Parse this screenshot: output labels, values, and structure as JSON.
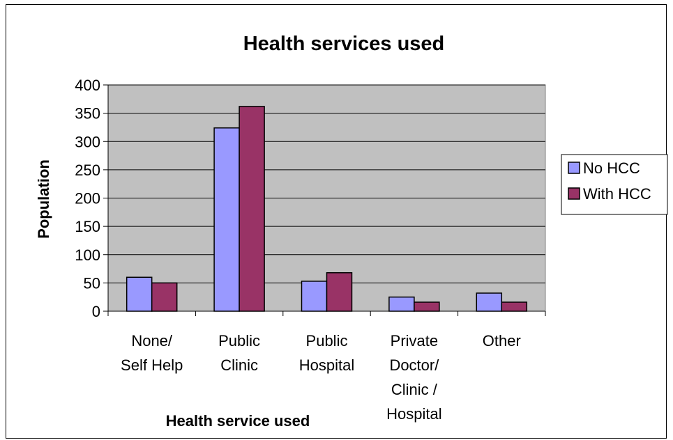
{
  "chart_data": {
    "type": "bar",
    "title": "Health services used",
    "xlabel": "Health service used",
    "ylabel": "Population",
    "ylim": [
      0,
      400
    ],
    "yticks": [
      0,
      50,
      100,
      150,
      200,
      250,
      300,
      350,
      400
    ],
    "grid": true,
    "legend_position": "right",
    "categories": [
      [
        "None/",
        "Self Help"
      ],
      [
        "Public",
        "Clinic"
      ],
      [
        "Public",
        "Hospital"
      ],
      [
        "Private",
        "Doctor/",
        "Clinic /",
        "Hospital"
      ],
      [
        "Other"
      ]
    ],
    "series": [
      {
        "name": "No HCC",
        "color": "#9999ff",
        "values": [
          60,
          324,
          53,
          25,
          32
        ]
      },
      {
        "name": "With HCC",
        "color": "#993366",
        "values": [
          50,
          362,
          68,
          16,
          16
        ]
      }
    ],
    "plot_background": "#c0c0c0"
  }
}
